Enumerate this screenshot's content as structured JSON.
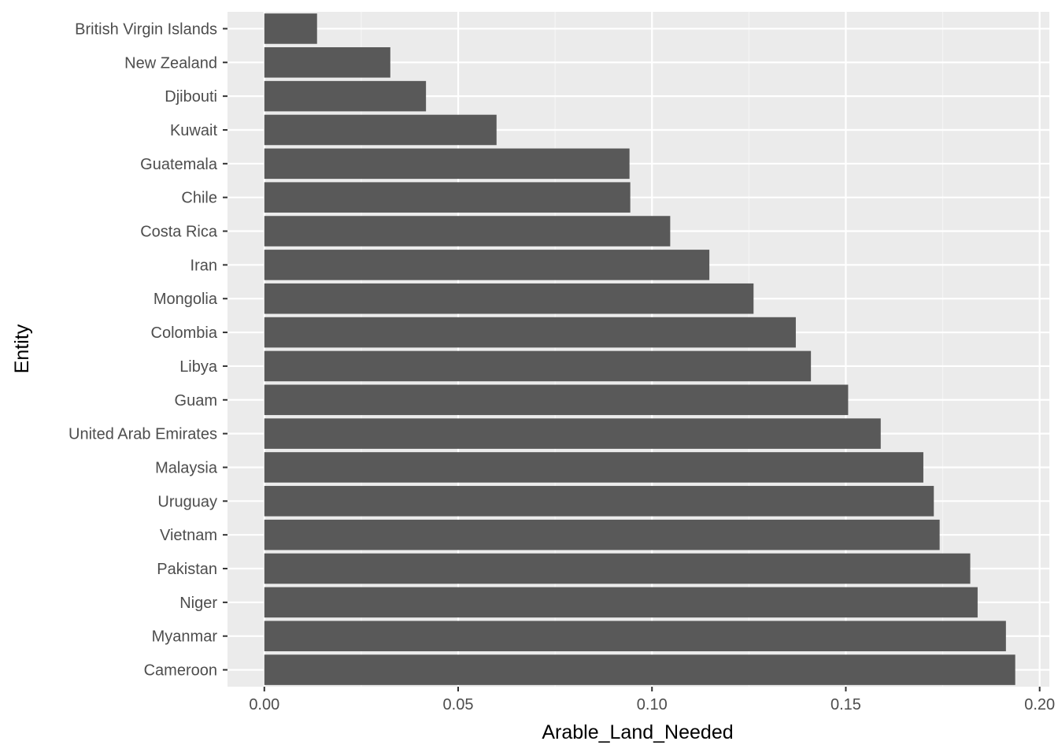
{
  "chart_data": {
    "type": "bar",
    "orientation": "horizontal",
    "xlabel": "Arable_Land_Needed",
    "ylabel": "Entity",
    "xlim": [
      -0.0095,
      0.2025
    ],
    "x_ticks": [
      0.0,
      0.05,
      0.1,
      0.15,
      0.2
    ],
    "x_tick_labels": [
      "0.00",
      "0.05",
      "0.10",
      "0.15",
      "0.20"
    ],
    "grid": true,
    "legend": "none",
    "colors": {
      "bar": "#595959",
      "panel": "#ebebeb",
      "grid_major": "#ffffff",
      "grid_minor": "#f4f4f4"
    },
    "categories": [
      "British Virgin Islands",
      "New Zealand",
      "Djibouti",
      "Kuwait",
      "Guatemala",
      "Chile",
      "Costa Rica",
      "Iran",
      "Mongolia",
      "Colombia",
      "Libya",
      "Guam",
      "United Arab Emirates",
      "Malaysia",
      "Uruguay",
      "Vietnam",
      "Pakistan",
      "Niger",
      "Myanmar",
      "Cameroon"
    ],
    "values": [
      0.0136,
      0.0325,
      0.0417,
      0.0599,
      0.0942,
      0.0944,
      0.1047,
      0.1148,
      0.1262,
      0.1371,
      0.141,
      0.1506,
      0.159,
      0.17,
      0.1727,
      0.1742,
      0.1821,
      0.184,
      0.1913,
      0.1937
    ]
  }
}
